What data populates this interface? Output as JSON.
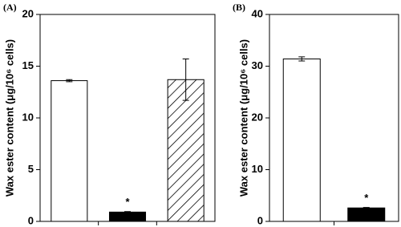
{
  "chart_data": [
    {
      "type": "bar",
      "title": "(A)",
      "ylabel": "Wax ester content (μg/10⁶ cells)",
      "categories": [
        null,
        null,
        null
      ],
      "values": [
        13.6,
        0.9,
        13.7
      ],
      "errors": [
        0.1,
        0.05,
        2.0
      ],
      "bar_styles": [
        "open",
        "filled",
        "hatched"
      ],
      "value_annotations": [
        null,
        "*",
        null
      ],
      "ylim": [
        0,
        20
      ],
      "yticks": [
        0,
        5,
        10,
        15,
        20
      ]
    },
    {
      "type": "bar",
      "title": "(B)",
      "ylabel": "Wax ester content (μg/10⁶ cells)",
      "categories": [
        null,
        null
      ],
      "values": [
        31.4,
        2.6
      ],
      "errors": [
        0.4,
        0.1
      ],
      "bar_styles": [
        "open",
        "filled"
      ],
      "value_annotations": [
        null,
        "*"
      ],
      "ylim": [
        0,
        40
      ],
      "yticks": [
        0,
        10,
        20,
        30,
        40
      ]
    }
  ]
}
